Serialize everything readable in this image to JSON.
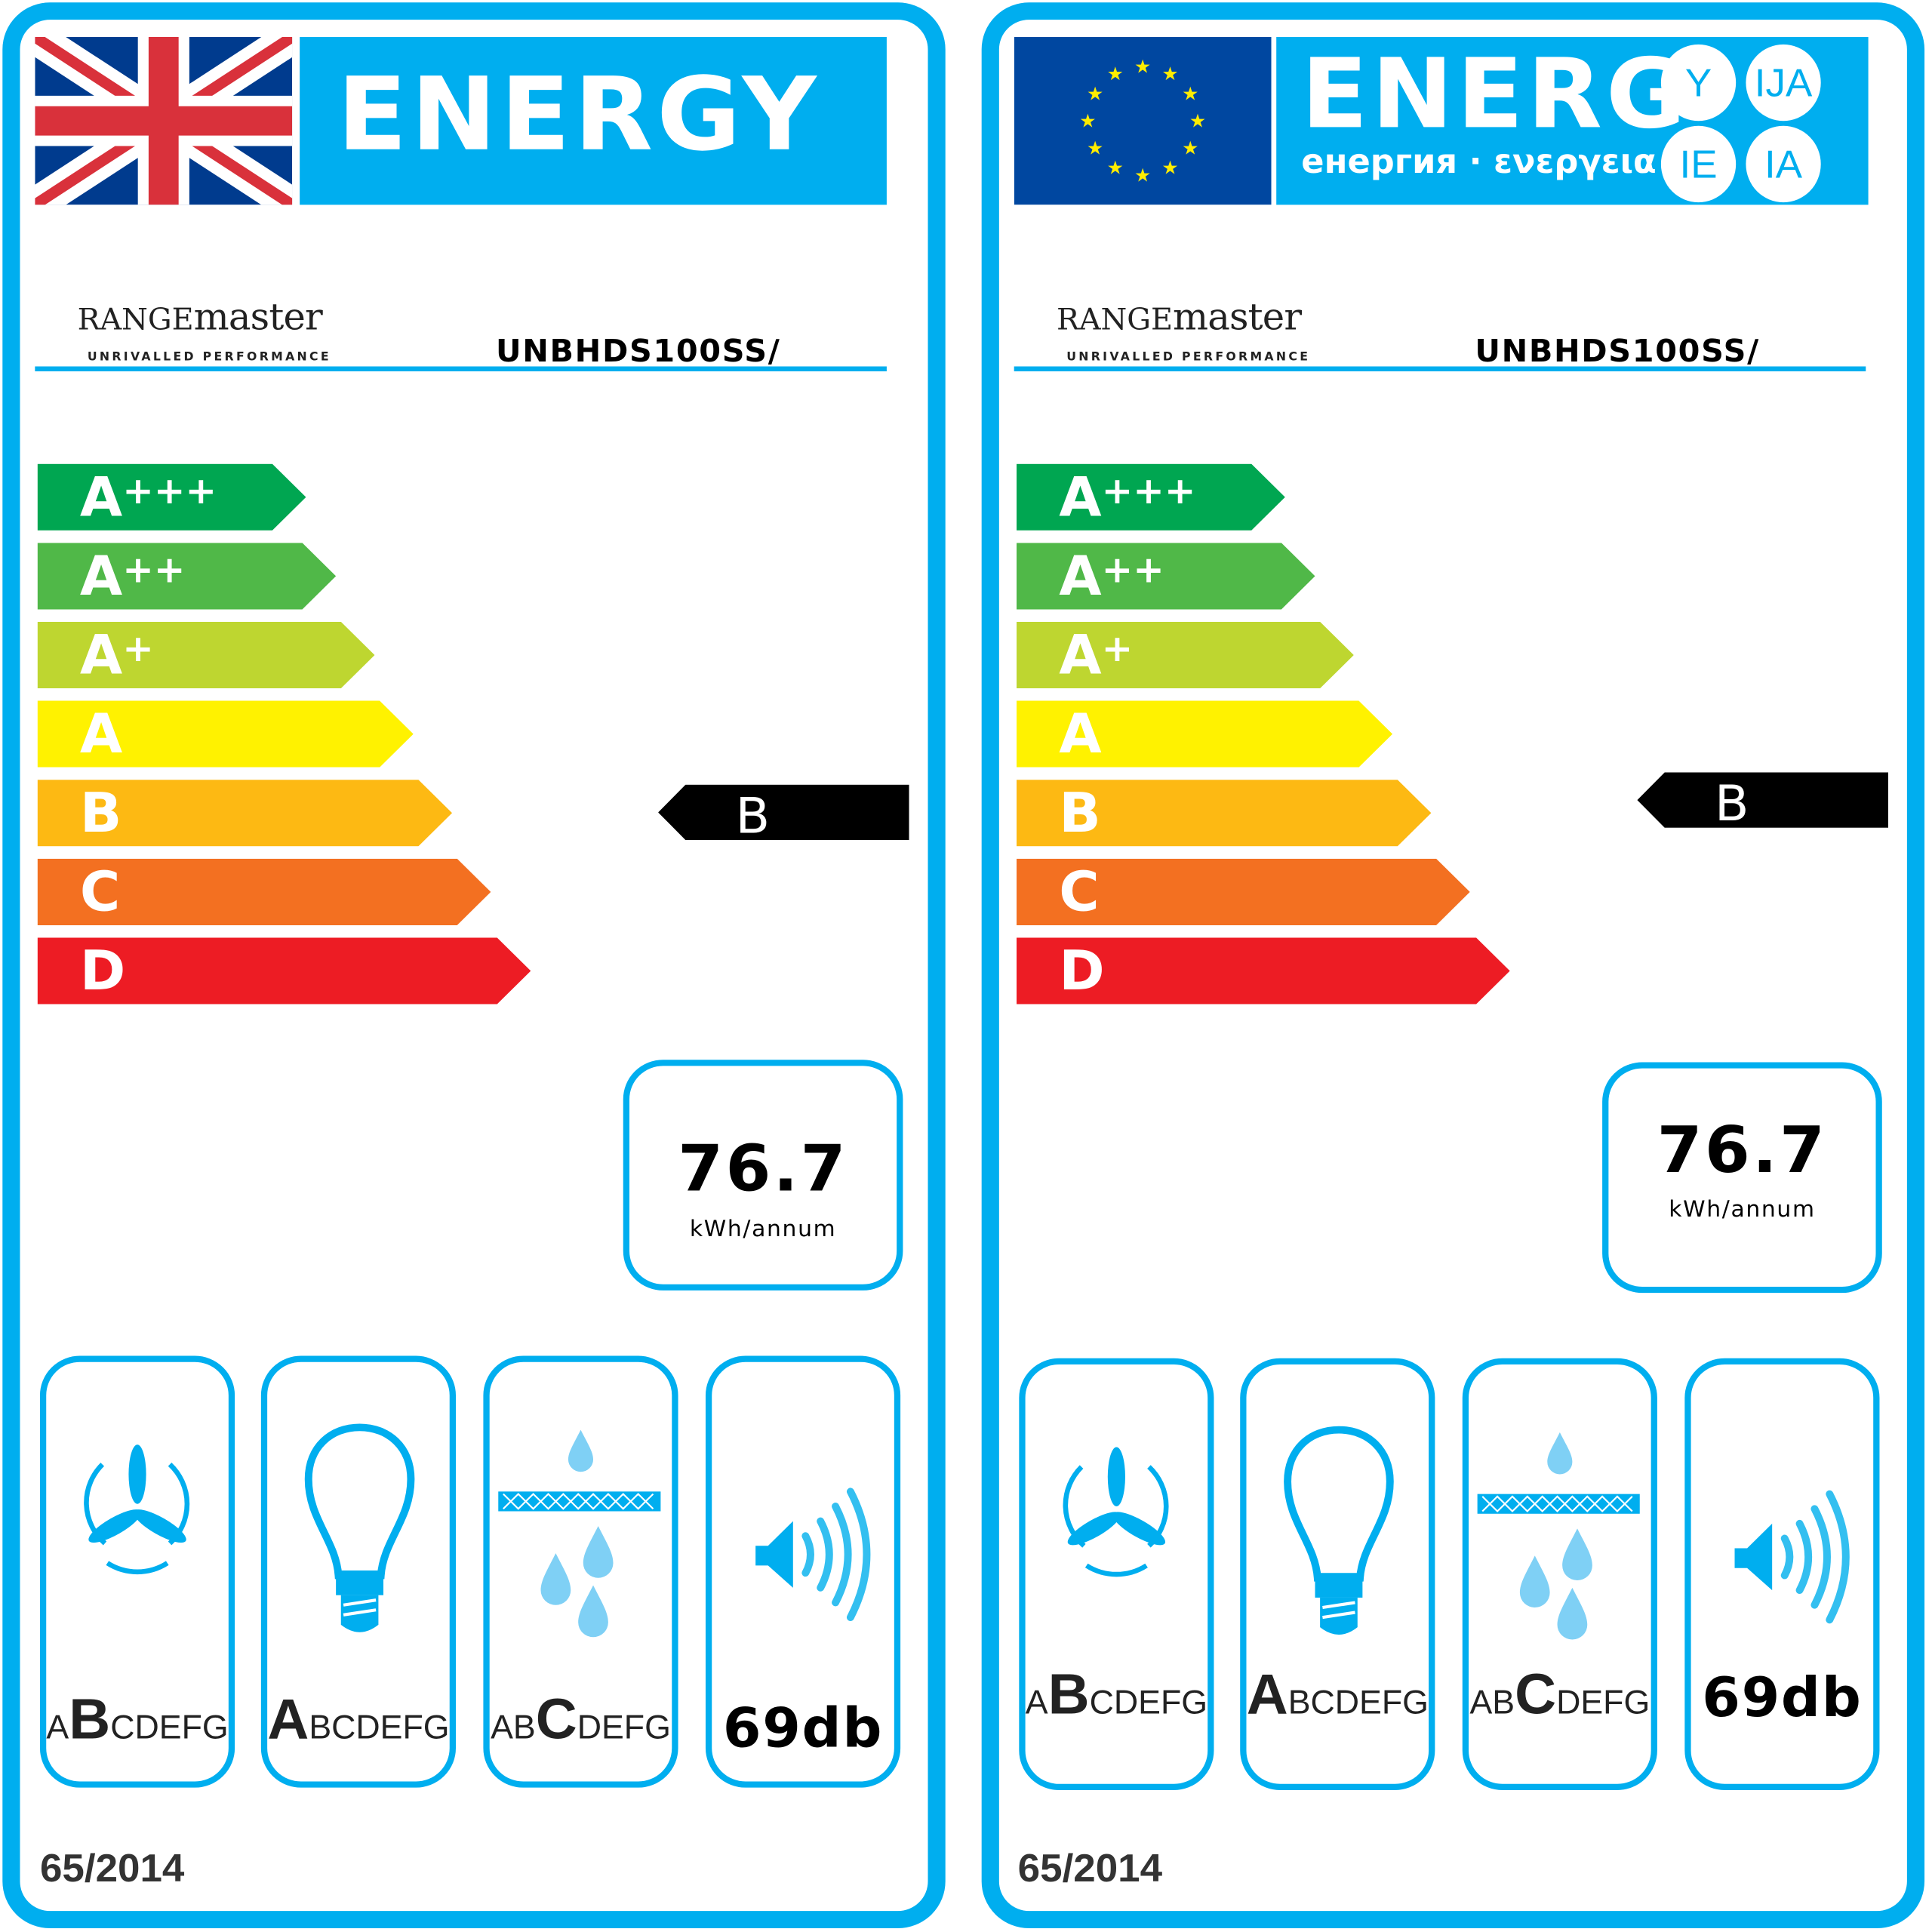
{
  "labels": [
    {
      "header": {
        "flag": "uk-flag-icon",
        "title": "ENERGY"
      },
      "brand": {
        "name_caps": "RANGE",
        "name_lower": "master",
        "tagline": "UNRIVALLED PERFORMANCE"
      },
      "model": "UNBHDS100SS/",
      "energy_classes": [
        {
          "letter": "A",
          "plus": "+++",
          "color": "#00a651"
        },
        {
          "letter": "A",
          "plus": "++",
          "color": "#50b848"
        },
        {
          "letter": "A",
          "plus": "+",
          "color": "#bed630"
        },
        {
          "letter": "A",
          "plus": "",
          "color": "#fff200"
        },
        {
          "letter": "B",
          "plus": "",
          "color": "#fdb913"
        },
        {
          "letter": "C",
          "plus": "",
          "color": "#f37021"
        },
        {
          "letter": "D",
          "plus": "",
          "color": "#ed1c24"
        }
      ],
      "rating": "B",
      "consumption": {
        "value": "76.7",
        "unit": "kWh/annum"
      },
      "indicators": [
        {
          "icon": "fan-icon",
          "before": "A",
          "rating": "B",
          "after": "CDEFG"
        },
        {
          "icon": "light-bulb-icon",
          "before": "",
          "rating": "A",
          "after": "BCDEFG"
        },
        {
          "icon": "grease-filter-icon",
          "before": "AB",
          "rating": "C",
          "after": "DEFG"
        },
        {
          "icon": "speaker-icon",
          "noise": "69db"
        }
      ],
      "regulation": "65/2014"
    },
    {
      "header": {
        "flag": "eu-flag-icon",
        "title": "ENERG",
        "subtitle": "енергия · ενεργεια",
        "suffixes": [
          "Y",
          "IJA",
          "IE",
          "IA"
        ]
      },
      "brand": {
        "name_caps": "RANGE",
        "name_lower": "master",
        "tagline": "UNRIVALLED PERFORMANCE"
      },
      "model": "UNBHDS100SS/",
      "energy_classes": [
        {
          "letter": "A",
          "plus": "+++",
          "color": "#00a651"
        },
        {
          "letter": "A",
          "plus": "++",
          "color": "#50b848"
        },
        {
          "letter": "A",
          "plus": "+",
          "color": "#bed630"
        },
        {
          "letter": "A",
          "plus": "",
          "color": "#fff200"
        },
        {
          "letter": "B",
          "plus": "",
          "color": "#fdb913"
        },
        {
          "letter": "C",
          "plus": "",
          "color": "#f37021"
        },
        {
          "letter": "D",
          "plus": "",
          "color": "#ed1c24"
        }
      ],
      "rating": "B",
      "consumption": {
        "value": "76.7",
        "unit": "kWh/annum"
      },
      "indicators": [
        {
          "icon": "fan-icon",
          "before": "A",
          "rating": "B",
          "after": "CDEFG"
        },
        {
          "icon": "light-bulb-icon",
          "before": "",
          "rating": "A",
          "after": "BCDEFG"
        },
        {
          "icon": "grease-filter-icon",
          "before": "AB",
          "rating": "C",
          "after": "DEFG"
        },
        {
          "icon": "speaker-icon",
          "noise": "69db"
        }
      ],
      "regulation": "65/2014"
    }
  ],
  "colors": {
    "frame": "#00aeef",
    "eu_blue": "#0047a0",
    "uk_blue": "#003b8e",
    "uk_red": "#d9313b"
  }
}
